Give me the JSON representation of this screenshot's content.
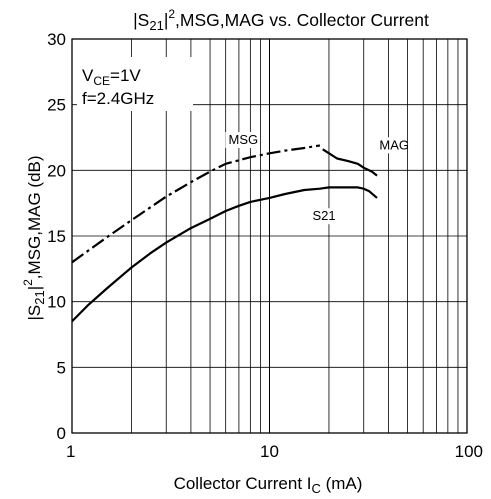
{
  "chart_data": {
    "type": "line",
    "title": {
      "prefix": "|S",
      "sub": "21",
      "mid": "|",
      "sup": "2",
      "rest": ",MSG,MAG vs. Collector Current"
    },
    "xlabel": {
      "main": "Collector Current   I",
      "sub": "C",
      "unit": " (mA)"
    },
    "ylabel": {
      "prefix": "|S",
      "sub": "21",
      "mid": "|",
      "sup": "2",
      "rest": ",MSG,MAG (dB)"
    },
    "xscale": "log",
    "xlim": [
      1,
      100
    ],
    "ylim": [
      0,
      30
    ],
    "grid": true,
    "x_ticks": [
      {
        "value": 1,
        "label": "1"
      },
      {
        "value": 10,
        "label": "10"
      },
      {
        "value": 100,
        "label": "100"
      }
    ],
    "y_ticks": [
      {
        "value": 0,
        "label": "0"
      },
      {
        "value": 5,
        "label": "5"
      },
      {
        "value": 10,
        "label": "10"
      },
      {
        "value": 15,
        "label": "15"
      },
      {
        "value": 20,
        "label": "20"
      },
      {
        "value": 25,
        "label": "25"
      },
      {
        "value": 30,
        "label": "30"
      }
    ],
    "conditions": {
      "vce_prefix": "V",
      "vce_sub": "CE",
      "vce_value": "=1V",
      "freq": "f=2.4GHz"
    },
    "series": [
      {
        "name": "MSG",
        "style": "dashdot",
        "points": [
          [
            1,
            13.0
          ],
          [
            1.5,
            14.9
          ],
          [
            2,
            16.2
          ],
          [
            3,
            18.0
          ],
          [
            4,
            19.1
          ],
          [
            5,
            19.9
          ],
          [
            6,
            20.5
          ],
          [
            8,
            21.0
          ],
          [
            10,
            21.3
          ],
          [
            12,
            21.5
          ],
          [
            15,
            21.7
          ],
          [
            18,
            21.9
          ]
        ]
      },
      {
        "name": "MAG",
        "style": "solid",
        "points": [
          [
            18.6,
            21.6
          ],
          [
            20,
            21.3
          ],
          [
            22,
            20.9
          ],
          [
            25,
            20.7
          ],
          [
            28,
            20.5
          ],
          [
            30,
            20.2
          ],
          [
            33,
            19.9
          ],
          [
            35,
            19.6
          ]
        ]
      },
      {
        "name": "S21",
        "style": "solid",
        "points": [
          [
            1,
            8.5
          ],
          [
            1.2,
            9.7
          ],
          [
            1.5,
            11.0
          ],
          [
            2,
            12.6
          ],
          [
            2.5,
            13.7
          ],
          [
            3,
            14.5
          ],
          [
            4,
            15.6
          ],
          [
            5,
            16.3
          ],
          [
            6,
            16.9
          ],
          [
            7,
            17.3
          ],
          [
            8,
            17.6
          ],
          [
            10,
            17.9
          ],
          [
            12,
            18.2
          ],
          [
            15,
            18.5
          ],
          [
            18,
            18.6
          ],
          [
            20,
            18.7
          ],
          [
            22,
            18.7
          ],
          [
            25,
            18.7
          ],
          [
            28,
            18.7
          ],
          [
            30,
            18.6
          ],
          [
            32,
            18.4
          ],
          [
            35,
            17.9
          ]
        ]
      }
    ],
    "annotations": [
      {
        "text": "MSG",
        "x": 6.2,
        "y": 22.0
      },
      {
        "text": "MAG",
        "x": 36,
        "y": 21.6
      },
      {
        "text": "S21",
        "x": 16.5,
        "y": 16.2
      }
    ]
  }
}
